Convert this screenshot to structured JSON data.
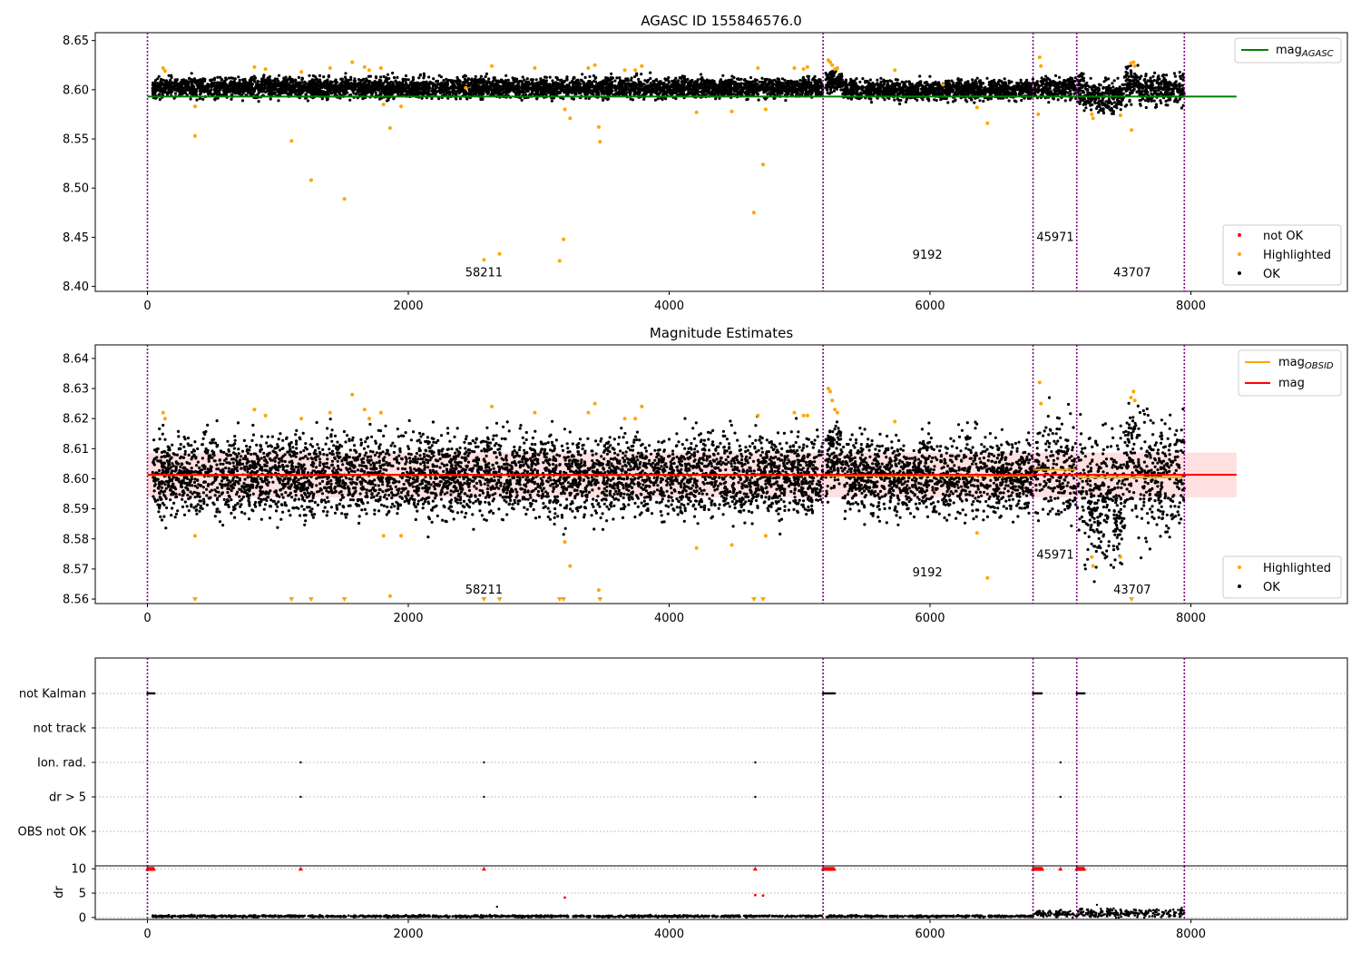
{
  "figure_title": "AGASC ID 155846576.0",
  "chart_data": [
    {
      "id": "agasc",
      "type": "scatter",
      "title": "AGASC ID 155846576.0",
      "xlim": [
        -400,
        9200
      ],
      "ylim": [
        8.395,
        8.658
      ],
      "xticks": [
        0,
        2000,
        4000,
        6000,
        8000
      ],
      "yticks": [
        8.4,
        8.45,
        8.5,
        8.55,
        8.6,
        8.65
      ],
      "ytick_decimals": 2,
      "obs_boundaries": [
        0,
        5180,
        6790,
        7125,
        7950
      ],
      "obsids": [
        {
          "label": "58211",
          "x": 2580,
          "y": 8.41
        },
        {
          "label": "9192",
          "x": 5980,
          "y": 8.428
        },
        {
          "label": "45971",
          "x": 6960,
          "y": 8.446
        },
        {
          "label": "43707",
          "x": 7550,
          "y": 8.41
        }
      ],
      "lines": [
        {
          "name": "mag_AGASC",
          "color": "#008000",
          "y": 8.593,
          "x": [
            0,
            8350
          ]
        }
      ],
      "legend_top": [
        {
          "main": "mag",
          "sub": "AGASC",
          "color": "#008000",
          "kind": "line"
        }
      ],
      "legend_bottom": [
        {
          "label": "not OK",
          "color": "#ff0000",
          "kind": "dot"
        },
        {
          "label": "Highlighted",
          "color": "#ffa500",
          "kind": "dot"
        },
        {
          "label": "OK",
          "color": "#000000",
          "kind": "dot"
        }
      ],
      "highlighted": [
        [
          120,
          8.622
        ],
        [
          135,
          8.619
        ],
        [
          365,
          8.553
        ],
        [
          365,
          8.583
        ],
        [
          820,
          8.623
        ],
        [
          905,
          8.621
        ],
        [
          1105,
          8.548
        ],
        [
          1180,
          8.618
        ],
        [
          1255,
          8.508
        ],
        [
          1400,
          8.622
        ],
        [
          1510,
          8.489
        ],
        [
          1570,
          8.628
        ],
        [
          1665,
          8.623
        ],
        [
          1700,
          8.62
        ],
        [
          1790,
          8.622
        ],
        [
          1810,
          8.585
        ],
        [
          1860,
          8.561
        ],
        [
          1945,
          8.583
        ],
        [
          2440,
          8.602
        ],
        [
          2580,
          8.427
        ],
        [
          2640,
          8.624
        ],
        [
          2700,
          8.433
        ],
        [
          2970,
          8.622
        ],
        [
          3160,
          8.426
        ],
        [
          3190,
          8.448
        ],
        [
          3200,
          8.58
        ],
        [
          3240,
          8.571
        ],
        [
          3380,
          8.622
        ],
        [
          3430,
          8.625
        ],
        [
          3460,
          8.562
        ],
        [
          3470,
          8.547
        ],
        [
          3660,
          8.62
        ],
        [
          3740,
          8.62
        ],
        [
          3790,
          8.624
        ],
        [
          4210,
          8.577
        ],
        [
          4480,
          8.578
        ],
        [
          4650,
          8.475
        ],
        [
          4680,
          8.622
        ],
        [
          4720,
          8.524
        ],
        [
          4740,
          8.58
        ],
        [
          4960,
          8.622
        ],
        [
          5030,
          8.621
        ],
        [
          5060,
          8.623
        ],
        [
          5220,
          8.63
        ],
        [
          5235,
          8.628
        ],
        [
          5250,
          8.625
        ],
        [
          5270,
          8.621
        ],
        [
          5290,
          8.622
        ],
        [
          5730,
          8.62
        ],
        [
          6100,
          8.605
        ],
        [
          6360,
          8.582
        ],
        [
          6440,
          8.566
        ],
        [
          6840,
          8.633
        ],
        [
          6850,
          8.624
        ],
        [
          6830,
          8.575
        ],
        [
          7240,
          8.575
        ],
        [
          7250,
          8.571
        ],
        [
          7460,
          8.574
        ],
        [
          7540,
          8.627
        ],
        [
          7545,
          8.559
        ],
        [
          7560,
          8.628
        ],
        [
          7570,
          8.624
        ]
      ],
      "not_ok": []
    },
    {
      "id": "estimates",
      "type": "scatter",
      "title": "Magnitude Estimates",
      "xlim": [
        -400,
        9200
      ],
      "ylim": [
        8.5585,
        8.6445
      ],
      "xticks": [
        0,
        2000,
        4000,
        6000,
        8000
      ],
      "yticks": [
        8.56,
        8.57,
        8.58,
        8.59,
        8.6,
        8.61,
        8.62,
        8.63,
        8.64
      ],
      "ytick_decimals": 2,
      "obs_boundaries": [
        0,
        5180,
        6790,
        7125,
        7950
      ],
      "obsids": [
        {
          "label": "58211",
          "x": 2580,
          "y": 8.5618
        },
        {
          "label": "9192",
          "x": 5980,
          "y": 8.5675
        },
        {
          "label": "45971",
          "x": 6960,
          "y": 8.5735
        },
        {
          "label": "43707",
          "x": 7550,
          "y": 8.5618
        }
      ],
      "band": {
        "y0": 8.5938,
        "y1": 8.6087,
        "x": [
          0,
          8350
        ]
      },
      "lines": [
        {
          "name": "mag",
          "color": "#ff0000",
          "y": 8.6013,
          "x": [
            0,
            8350
          ]
        }
      ],
      "obsid_mags": [
        {
          "x": [
            0,
            5180
          ],
          "y": 8.6012
        },
        {
          "x": [
            5180,
            6790
          ],
          "y": 8.601
        },
        {
          "x": [
            6790,
            7125
          ],
          "y": 8.603
        },
        {
          "x": [
            7125,
            7950
          ],
          "y": 8.6005
        }
      ],
      "legend_top": [
        {
          "main": "mag",
          "sub": "OBSID",
          "color": "#ffa500",
          "kind": "line"
        },
        {
          "main": "mag",
          "sub": "",
          "color": "#ff0000",
          "kind": "line"
        }
      ],
      "legend_bottom": [
        {
          "label": "Highlighted",
          "color": "#ffa500",
          "kind": "dot"
        },
        {
          "label": "OK",
          "color": "#000000",
          "kind": "dot"
        }
      ],
      "highlighted": [
        [
          120,
          8.622
        ],
        [
          135,
          8.62
        ],
        [
          365,
          8.581
        ],
        [
          820,
          8.623
        ],
        [
          905,
          8.621
        ],
        [
          1180,
          8.62
        ],
        [
          1400,
          8.622
        ],
        [
          1570,
          8.628
        ],
        [
          1665,
          8.623
        ],
        [
          1700,
          8.62
        ],
        [
          1790,
          8.622
        ],
        [
          1810,
          8.581
        ],
        [
          1860,
          8.561
        ],
        [
          1945,
          8.581
        ],
        [
          2640,
          8.624
        ],
        [
          2970,
          8.622
        ],
        [
          3200,
          8.579
        ],
        [
          3240,
          8.571
        ],
        [
          3380,
          8.622
        ],
        [
          3430,
          8.625
        ],
        [
          3460,
          8.563
        ],
        [
          3660,
          8.62
        ],
        [
          3740,
          8.62
        ],
        [
          3790,
          8.624
        ],
        [
          4210,
          8.577
        ],
        [
          4480,
          8.578
        ],
        [
          4680,
          8.621
        ],
        [
          4740,
          8.581
        ],
        [
          4960,
          8.622
        ],
        [
          5030,
          8.621
        ],
        [
          5060,
          8.621
        ],
        [
          5220,
          8.63
        ],
        [
          5235,
          8.629
        ],
        [
          5250,
          8.626
        ],
        [
          5270,
          8.623
        ],
        [
          5290,
          8.622
        ],
        [
          5730,
          8.619
        ],
        [
          6360,
          8.582
        ],
        [
          6440,
          8.567
        ],
        [
          6840,
          8.632
        ],
        [
          6850,
          8.625
        ],
        [
          7240,
          8.574
        ],
        [
          7250,
          8.571
        ],
        [
          7460,
          8.574
        ],
        [
          7540,
          8.627
        ],
        [
          7560,
          8.629
        ],
        [
          7570,
          8.626
        ]
      ],
      "below_markers": [
        365,
        1105,
        1255,
        1510,
        2580,
        2700,
        3160,
        3190,
        3470,
        4650,
        4720,
        7545
      ]
    },
    {
      "id": "flags",
      "type": "scatter",
      "xlim": [
        -400,
        9200
      ],
      "categories": [
        "not Kalman",
        "not track",
        "Ion. rad.",
        "dr > 5",
        "OBS not OK"
      ],
      "obs_boundaries": [
        0,
        5180,
        6790,
        7125,
        7950
      ],
      "flag_ranges": [
        {
          "category": "not Kalman",
          "x": [
            0,
            55
          ]
        },
        {
          "category": "not Kalman",
          "x": [
            5180,
            5270
          ]
        },
        {
          "category": "not Kalman",
          "x": [
            6790,
            6860
          ]
        },
        {
          "category": "not Kalman",
          "x": [
            7125,
            7185
          ]
        }
      ],
      "flag_points": [
        {
          "category": "Ion. rad.",
          "x": 1175
        },
        {
          "category": "Ion. rad.",
          "x": 2580
        },
        {
          "category": "Ion. rad.",
          "x": 4660
        },
        {
          "category": "Ion. rad.",
          "x": 7000
        },
        {
          "category": "dr > 5",
          "x": 1175
        },
        {
          "category": "dr > 5",
          "x": 2580
        },
        {
          "category": "dr > 5",
          "x": 4660
        },
        {
          "category": "dr > 5",
          "x": 7000
        }
      ]
    },
    {
      "id": "dr",
      "type": "scatter",
      "ylabel": "dr",
      "xlim": [
        -400,
        9200
      ],
      "ylim": [
        -0.4,
        10.6
      ],
      "xticks": [
        0,
        2000,
        4000,
        6000,
        8000
      ],
      "yticks": [
        0,
        5,
        10
      ],
      "ytick_decimals": 0,
      "obs_boundaries": [
        0,
        5180,
        6790,
        7125,
        7950
      ],
      "capped_ranges": [
        [
          0,
          55
        ],
        [
          5180,
          5270
        ],
        [
          6790,
          6860
        ],
        [
          7125,
          7185
        ]
      ],
      "capped_points": [
        1175,
        2580,
        4660,
        7000
      ],
      "outliers": [
        [
          2680,
          2.2
        ],
        [
          3200,
          4.1
        ],
        [
          4660,
          4.6
        ],
        [
          4720,
          4.5
        ],
        [
          7280,
          2.6
        ],
        [
          7310,
          1.8
        ],
        [
          7930,
          2.0
        ]
      ]
    }
  ],
  "colors": {
    "ok": "#000000",
    "highlighted": "#ffa500",
    "not_ok": "#ff0000",
    "boundary": "#800080",
    "agasc_line": "#008000",
    "mag_line": "#ff0000",
    "obsid_line": "#ffa500",
    "band": "#ff0000",
    "grid": "#b0b0b0"
  }
}
